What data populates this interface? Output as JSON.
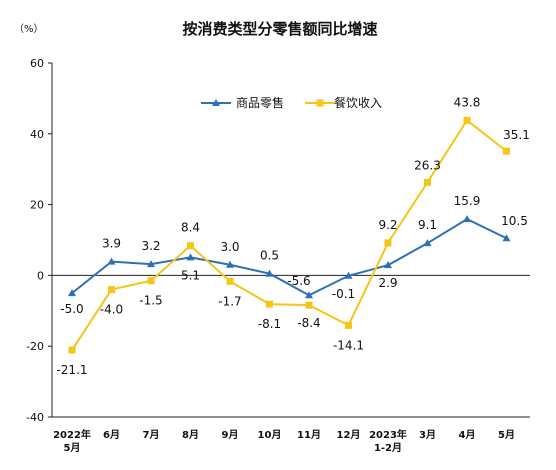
{
  "chart_data": {
    "type": "line",
    "title": "按消费类型分零售额同比增速",
    "unit_label": "（%）",
    "categories": [
      [
        "2022年",
        "5月"
      ],
      [
        "6月"
      ],
      [
        "7月"
      ],
      [
        "8月"
      ],
      [
        "9月"
      ],
      [
        "10月"
      ],
      [
        "11月"
      ],
      [
        "12月"
      ],
      [
        "2023年",
        "1-2月"
      ],
      [
        "3月"
      ],
      [
        "4月"
      ],
      [
        "5月"
      ]
    ],
    "series": [
      {
        "name": "商品零售",
        "color": "#2e6fb6",
        "marker": "triangle",
        "values": [
          -5.0,
          3.9,
          3.2,
          5.1,
          3.0,
          0.5,
          -5.6,
          -0.1,
          2.9,
          9.1,
          15.9,
          10.5
        ],
        "labels": [
          "-5.0",
          "3.9",
          "3.2",
          "5.1",
          "3.0",
          "0.5",
          "-5.6",
          "-0.1",
          "2.9",
          "9.1",
          "15.9",
          "10.5"
        ]
      },
      {
        "name": "餐饮收入",
        "color": "#f5c518",
        "marker": "square",
        "values": [
          -21.1,
          -4.0,
          -1.5,
          8.4,
          -1.7,
          -8.1,
          -8.4,
          -14.1,
          9.2,
          26.3,
          43.8,
          35.1
        ],
        "labels": [
          "-21.1",
          "-4.0",
          "-1.5",
          "8.4",
          "-1.7",
          "-8.1",
          "-8.4",
          "-14.1",
          "9.2",
          "26.3",
          "43.8",
          "35.1"
        ]
      }
    ],
    "ylim": [
      -40,
      60
    ],
    "yticks": [
      "60",
      "40",
      "20",
      "0",
      "-20",
      "-40"
    ],
    "grid": false,
    "legend": "top-center"
  }
}
